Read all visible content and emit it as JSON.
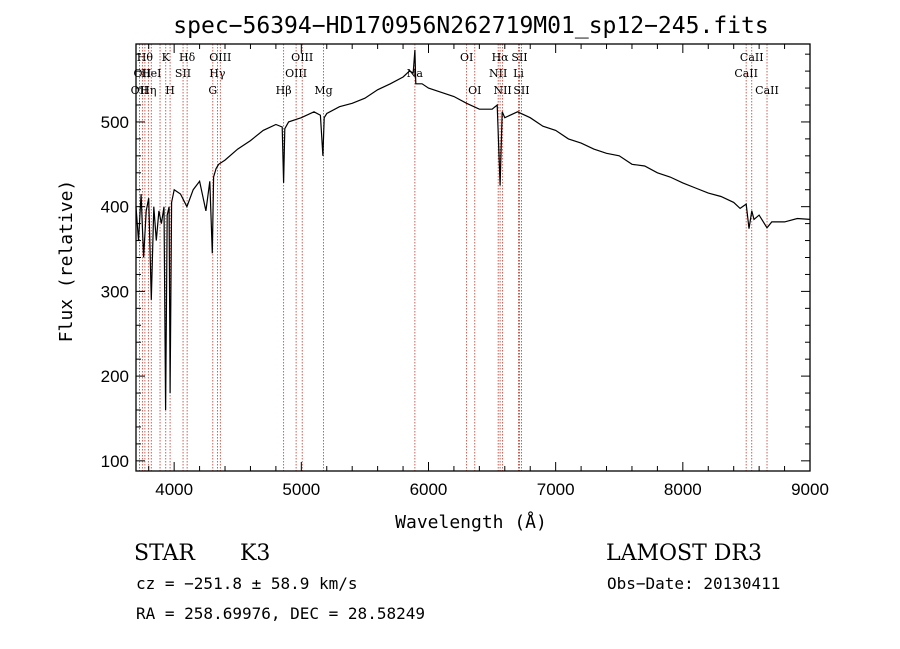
{
  "chart_data": {
    "type": "line",
    "title": "spec−56394−HD170956N262719M01_sp12−245.fits",
    "xlabel": "Wavelength (Å)",
    "ylabel": "Flux (relative)",
    "xlim": [
      3700,
      9000
    ],
    "ylim": [
      88,
      592
    ],
    "xticks": [
      4000,
      5000,
      6000,
      7000,
      8000,
      9000
    ],
    "yticks": [
      100,
      200,
      300,
      400,
      500
    ],
    "series": [
      {
        "name": "spectrum",
        "x": [
          3700,
          3720,
          3740,
          3760,
          3780,
          3800,
          3820,
          3840,
          3860,
          3880,
          3900,
          3920,
          3933,
          3945,
          3960,
          3968,
          3980,
          4000,
          4050,
          4100,
          4150,
          4200,
          4250,
          4280,
          4300,
          4310,
          4330,
          4350,
          4400,
          4500,
          4600,
          4700,
          4800,
          4850,
          4861,
          4870,
          4900,
          5000,
          5100,
          5150,
          5170,
          5180,
          5200,
          5300,
          5400,
          5500,
          5600,
          5700,
          5800,
          5850,
          5880,
          5893,
          5900,
          5950,
          6000,
          6100,
          6200,
          6300,
          6400,
          6500,
          6540,
          6563,
          6580,
          6600,
          6700,
          6800,
          6900,
          7000,
          7100,
          7200,
          7300,
          7400,
          7500,
          7600,
          7700,
          7800,
          7900,
          8000,
          8100,
          8200,
          8300,
          8400,
          8450,
          8498,
          8520,
          8542,
          8560,
          8600,
          8662,
          8700,
          8800,
          8900,
          9000
        ],
        "values": [
          400,
          360,
          415,
          340,
          395,
          410,
          290,
          400,
          360,
          395,
          380,
          400,
          160,
          390,
          400,
          180,
          405,
          420,
          415,
          400,
          420,
          430,
          395,
          430,
          345,
          435,
          445,
          450,
          455,
          468,
          478,
          490,
          497,
          494,
          428,
          492,
          500,
          505,
          512,
          508,
          460,
          505,
          510,
          518,
          522,
          528,
          538,
          545,
          553,
          560,
          558,
          585,
          545,
          545,
          540,
          535,
          530,
          522,
          515,
          515,
          520,
          425,
          512,
          505,
          512,
          505,
          495,
          490,
          480,
          475,
          468,
          463,
          460,
          450,
          448,
          440,
          435,
          428,
          422,
          416,
          412,
          405,
          398,
          403,
          374,
          395,
          385,
          390,
          375,
          382,
          382,
          386,
          385
        ]
      }
    ],
    "lines": [
      {
        "wave": 3727,
        "label": "OII",
        "row": 3
      },
      {
        "wave": 3750,
        "label": "OII",
        "row": 2
      },
      {
        "wave": 3770,
        "label": "Hθ",
        "row": 1
      },
      {
        "wave": 3797,
        "label": "Hη",
        "row": 3
      },
      {
        "wave": 3820,
        "label": "HeI",
        "row": 2
      },
      {
        "wave": 3889,
        "label": "",
        "row": 0
      },
      {
        "wave": 3934,
        "label": "K",
        "row": 1
      },
      {
        "wave": 3968,
        "label": "H",
        "row": 3
      },
      {
        "wave": 4070,
        "label": "SII",
        "row": 2
      },
      {
        "wave": 4102,
        "label": "Hδ",
        "row": 1
      },
      {
        "wave": 4304,
        "label": "G",
        "row": 3
      },
      {
        "wave": 4340,
        "label": "Hγ",
        "row": 2
      },
      {
        "wave": 4363,
        "label": "OIII",
        "row": 1
      },
      {
        "wave": 4861,
        "label": "Hβ",
        "row": 3
      },
      {
        "wave": 4959,
        "label": "OIII",
        "row": 2
      },
      {
        "wave": 5007,
        "label": "OIII",
        "row": 1
      },
      {
        "wave": 5175,
        "label": "Mg",
        "row": 3
      },
      {
        "wave": 5893,
        "label": "Na",
        "row": 2
      },
      {
        "wave": 6300,
        "label": "OI",
        "row": 1
      },
      {
        "wave": 6364,
        "label": "OI",
        "row": 3
      },
      {
        "wave": 6548,
        "label": "NII",
        "row": 2
      },
      {
        "wave": 6563,
        "label": "Hα",
        "row": 1
      },
      {
        "wave": 6583,
        "label": "NII",
        "row": 3
      },
      {
        "wave": 6708,
        "label": "Li",
        "row": 2
      },
      {
        "wave": 6716,
        "label": "SII",
        "row": 1
      },
      {
        "wave": 6731,
        "label": "SII",
        "row": 3
      },
      {
        "wave": 8498,
        "label": "CaII",
        "row": 2
      },
      {
        "wave": 8542,
        "label": "CaII",
        "row": 1
      },
      {
        "wave": 8662,
        "label": "CaII",
        "row": 3
      }
    ]
  },
  "info": {
    "object_type": "STAR",
    "subclass": "K3",
    "survey": "LAMOST DR3",
    "cz": "cz = −251.8 ± 58.9 km/s",
    "obs_date": "Obs−Date: 20130411",
    "coords": "RA = 258.69976, DEC =  28.58249"
  }
}
